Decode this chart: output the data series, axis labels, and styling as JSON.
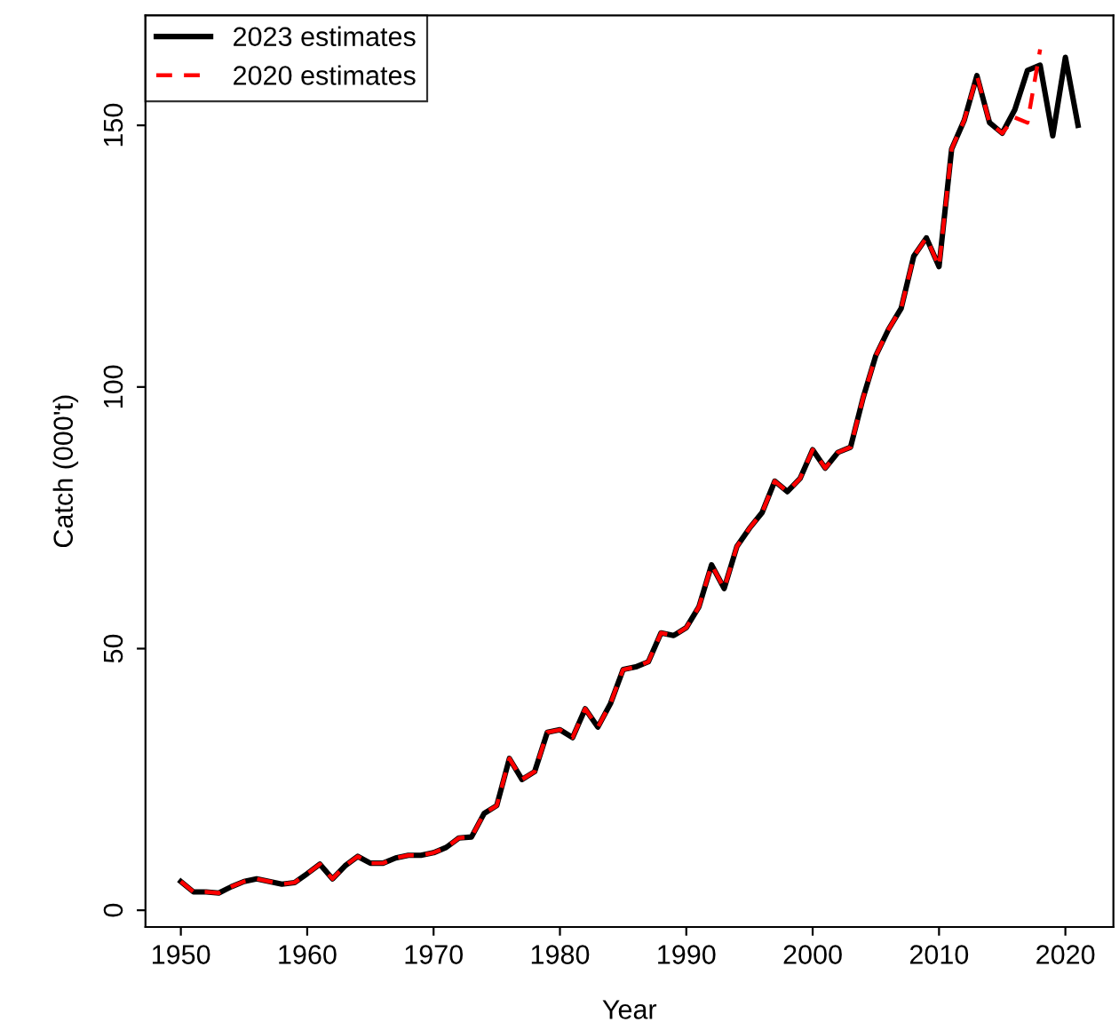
{
  "chart_data": {
    "type": "line",
    "xlabel": "Year",
    "ylabel": "Catch (000't)",
    "x": [
      1950,
      1951,
      1952,
      1953,
      1954,
      1955,
      1956,
      1957,
      1958,
      1959,
      1960,
      1961,
      1962,
      1963,
      1964,
      1965,
      1966,
      1967,
      1968,
      1969,
      1970,
      1971,
      1972,
      1973,
      1974,
      1975,
      1976,
      1977,
      1978,
      1979,
      1980,
      1981,
      1982,
      1983,
      1984,
      1985,
      1986,
      1987,
      1988,
      1989,
      1990,
      1991,
      1992,
      1993,
      1994,
      1995,
      1996,
      1997,
      1998,
      1999,
      2000,
      2001,
      2002,
      2003,
      2004,
      2005,
      2006,
      2007,
      2008,
      2009,
      2010,
      2011,
      2012,
      2013,
      2014,
      2015,
      2016,
      2017,
      2018,
      2019,
      2020,
      2021
    ],
    "series": [
      {
        "name": "2023 estimates",
        "color": "#000000",
        "line_style": "solid",
        "values": [
          5.5,
          3.5,
          3.5,
          3.3,
          4.5,
          5.5,
          6,
          5.5,
          5,
          5.3,
          7,
          8.8,
          6,
          8.5,
          10.3,
          9,
          9,
          10,
          10.5,
          10.5,
          11,
          12,
          13.8,
          14,
          18.5,
          20,
          29,
          25,
          26.5,
          34,
          34.5,
          33,
          38.5,
          35,
          39.5,
          46,
          46.5,
          47.5,
          53,
          52.5,
          54,
          58,
          66,
          61.5,
          69.5,
          73,
          76,
          82,
          80,
          82.5,
          88,
          84.5,
          87.5,
          88.5,
          98,
          106,
          111,
          115,
          125,
          128.5,
          123,
          145.5,
          151,
          159.5,
          150.5,
          148.5,
          153,
          160.5,
          161.5,
          148,
          163,
          150
        ]
      },
      {
        "name": "2020 estimates",
        "color": "#ff0000",
        "line_style": "dashed",
        "values": [
          5.5,
          3.5,
          3.5,
          3.3,
          4.5,
          5.5,
          6,
          5.5,
          5,
          5.3,
          7,
          8.8,
          6,
          8.5,
          10.3,
          9,
          9,
          10,
          10.5,
          10.5,
          11,
          12,
          13.8,
          14,
          18.5,
          20,
          29,
          25,
          26.5,
          34,
          34.5,
          33,
          38.5,
          35,
          39.5,
          46,
          46.5,
          47.5,
          53,
          52.5,
          54,
          58,
          66,
          61.5,
          69.5,
          73,
          76,
          82,
          80,
          82.5,
          88,
          84.5,
          87.5,
          88.5,
          98,
          106,
          111,
          115,
          125,
          128.5,
          123,
          145.5,
          151,
          159.5,
          150.5,
          148.5,
          151.5,
          150.5,
          164.5,
          null,
          null,
          null
        ]
      }
    ],
    "xlim": [
      1947.2,
      2023.8
    ],
    "xticks": [
      1950,
      1960,
      1970,
      1980,
      1990,
      2000,
      2010,
      2020
    ],
    "ylim": [
      -3.2,
      171
    ],
    "yticks": [
      0,
      50,
      100,
      150
    ],
    "grid": false,
    "legend": "top left",
    "marker": "none"
  }
}
